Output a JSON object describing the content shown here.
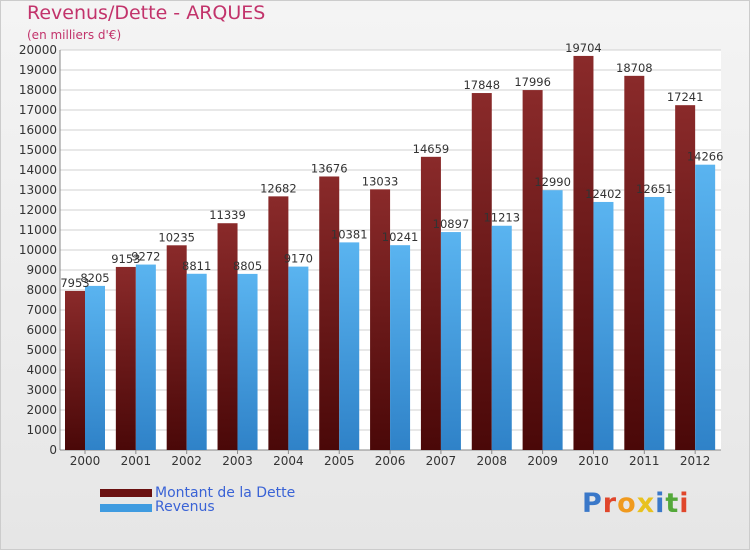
{
  "title": "Revenus/Dette - ARQUES",
  "subtitle": "(en milliers d'€)",
  "logo": {
    "text": "Proxiti",
    "colors": [
      "#3a78c9",
      "#e0462b",
      "#f09a1e",
      "#e8c21f",
      "#3a78c9",
      "#54a83a",
      "#e0462b"
    ]
  },
  "colors": {
    "debt": "#7a1c1c",
    "revenue": "#4da6e6",
    "title": "#c2336b",
    "legend_text": "#3a63d6"
  },
  "chart_data": {
    "type": "bar",
    "categories": [
      "2000",
      "2001",
      "2002",
      "2003",
      "2004",
      "2005",
      "2006",
      "2007",
      "2008",
      "2009",
      "2010",
      "2011",
      "2012"
    ],
    "series": [
      {
        "name": "Montant de la Dette",
        "values": [
          7953,
          9153,
          10235,
          11339,
          12682,
          13676,
          13033,
          14659,
          17848,
          17996,
          19704,
          18708,
          17241
        ]
      },
      {
        "name": "Revenus",
        "values": [
          8205,
          9272,
          8811,
          8805,
          9170,
          10381,
          10241,
          10897,
          11213,
          12990,
          12402,
          12651,
          14266
        ]
      }
    ],
    "ylim": [
      0,
      20000
    ],
    "yticks": [
      0,
      1000,
      2000,
      3000,
      4000,
      5000,
      6000,
      7000,
      8000,
      9000,
      10000,
      11000,
      12000,
      13000,
      14000,
      15000,
      16000,
      17000,
      18000,
      19000,
      20000
    ],
    "grid": true,
    "legend_position": "bottom-left"
  }
}
